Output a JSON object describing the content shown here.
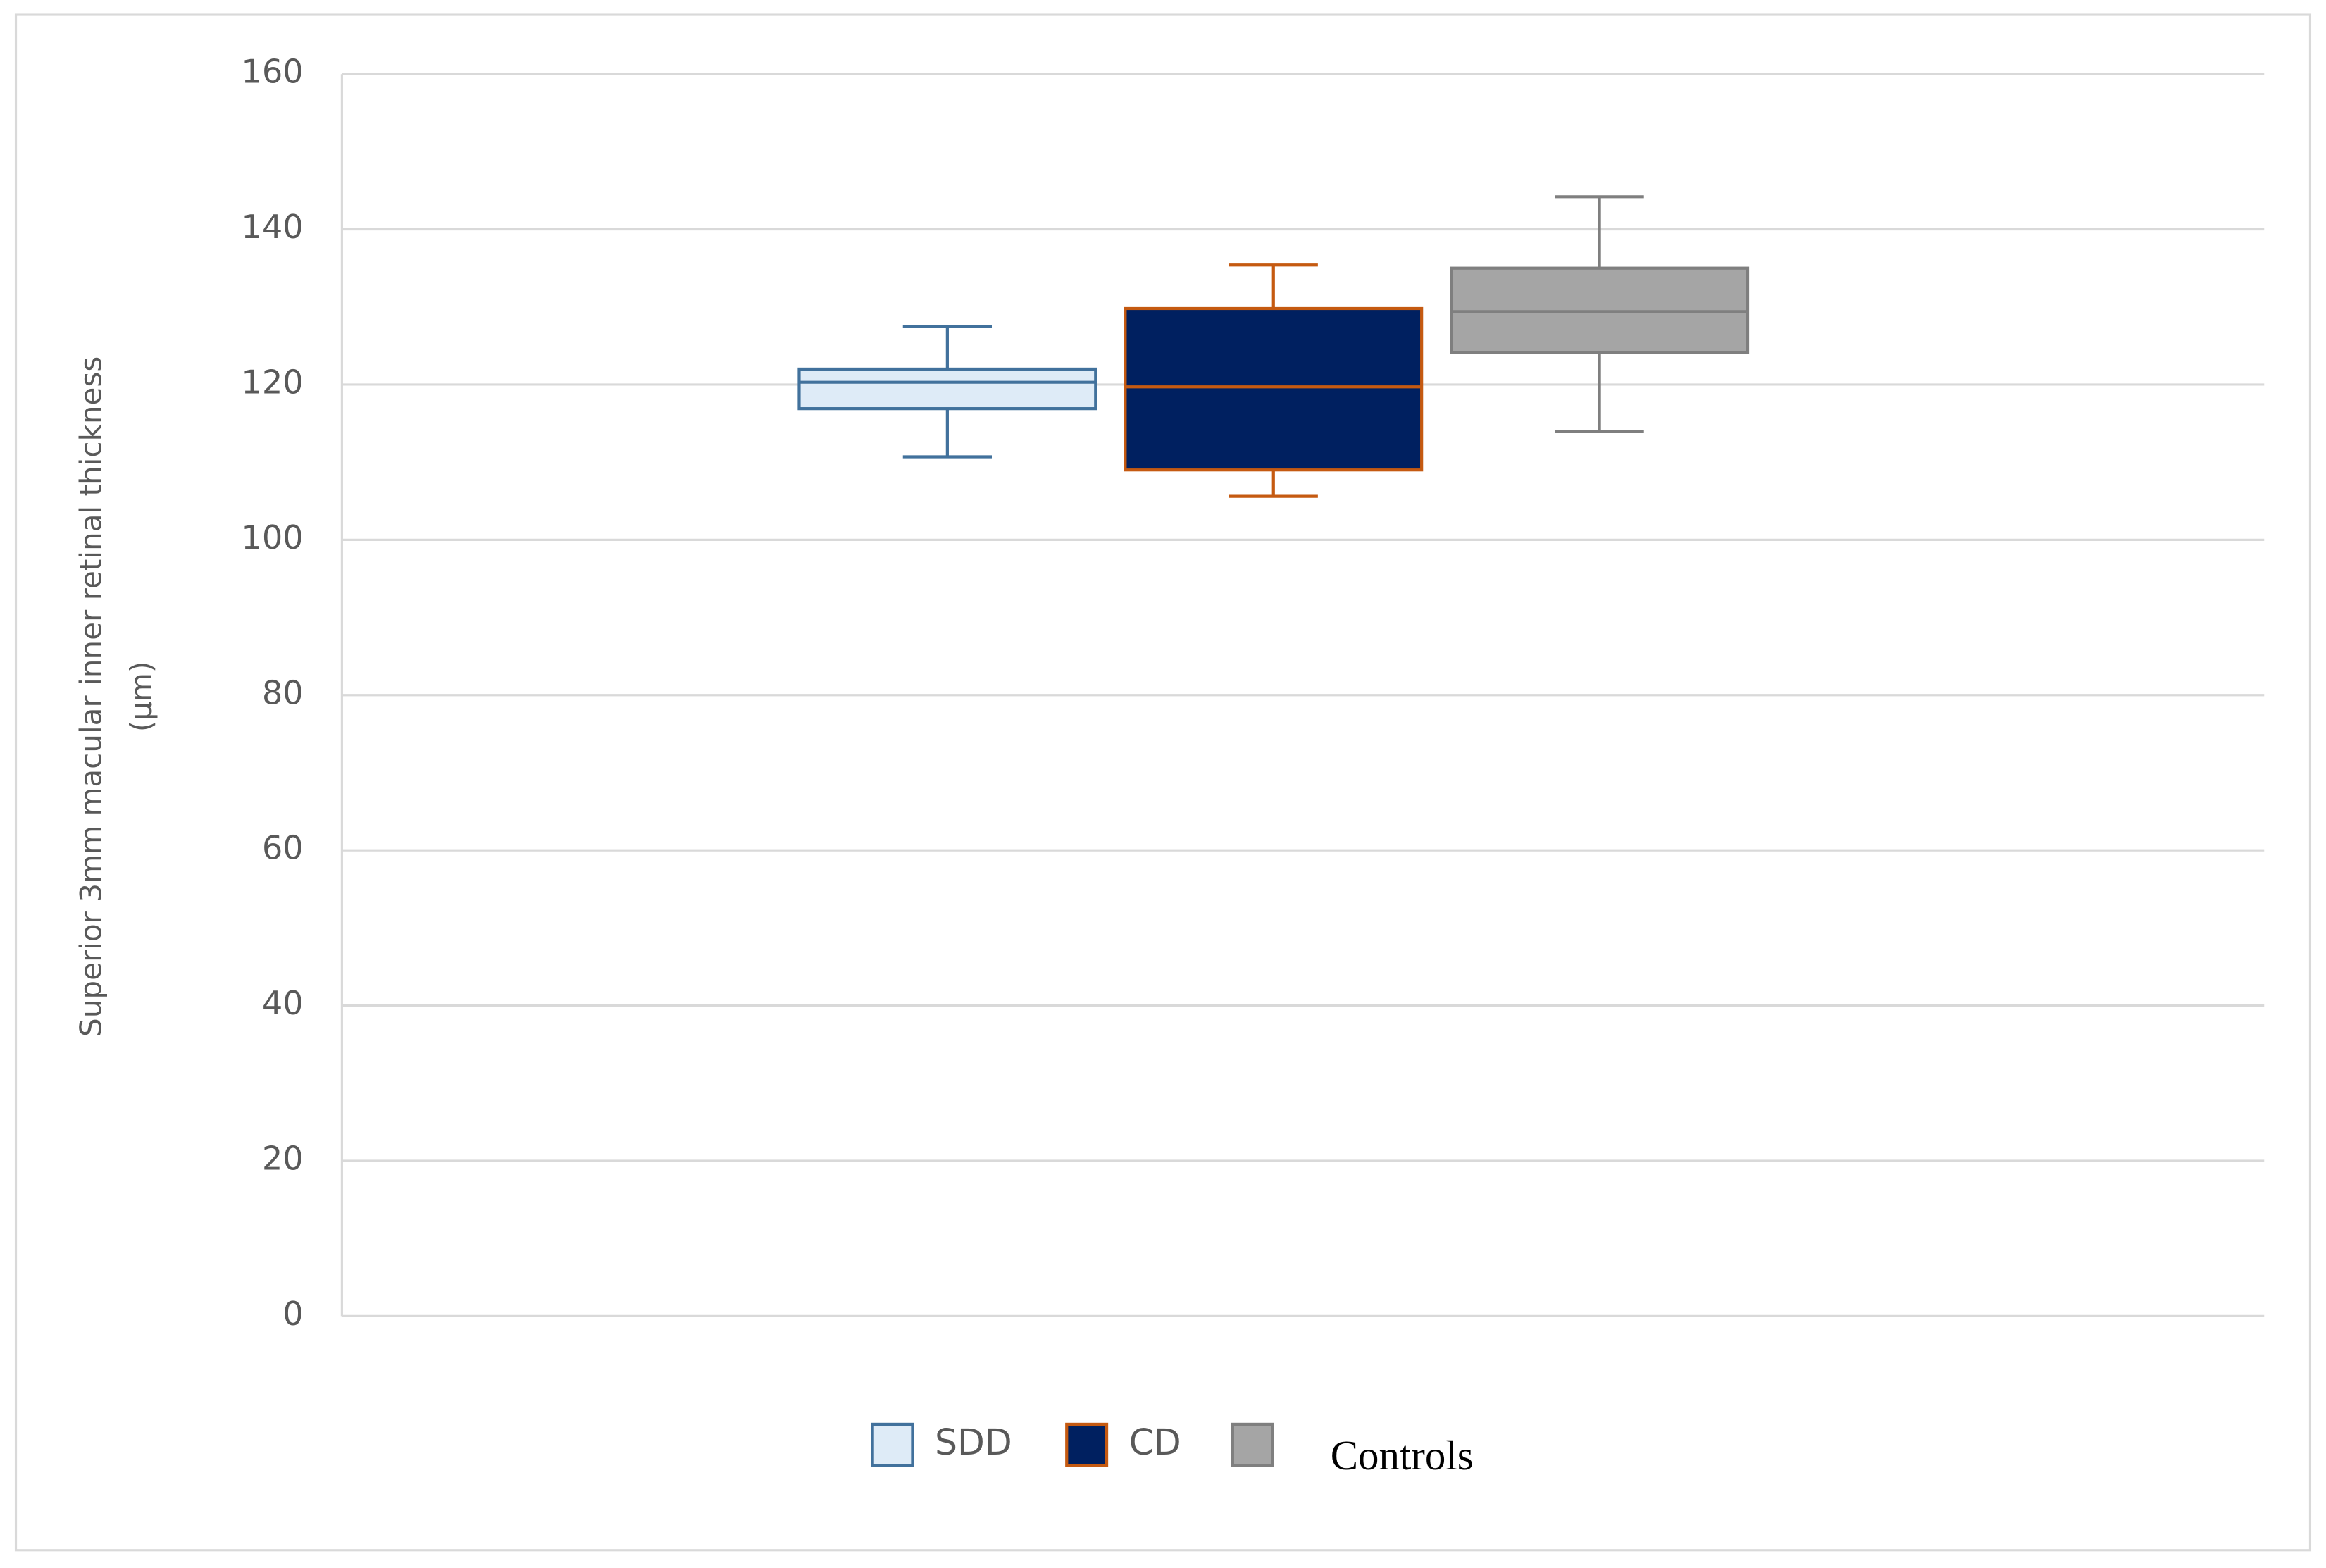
{
  "chart_data": {
    "type": "box",
    "y_label": [
      "Superior 3mm macular inner retinal thickness",
      "(μm)"
    ],
    "categories": [
      null
    ],
    "series": [
      {
        "name": "SDD",
        "color": "#deebf7",
        "stroke": "#41719c",
        "min": [
          110.7
        ],
        "q1": [
          116.9
        ],
        "median": [
          120.3
        ],
        "q3": [
          122.0
        ],
        "max": [
          127.5
        ]
      },
      {
        "name": "CD",
        "color": "#002060",
        "stroke": "#c55a11",
        "min": [
          105.6
        ],
        "q1": [
          109.0
        ],
        "median": [
          119.7
        ],
        "q3": [
          129.8
        ],
        "max": [
          135.4
        ]
      },
      {
        "name": "Controls",
        "color": "#a5a5a5",
        "stroke": "#7f7f7f",
        "min": [
          114.0
        ],
        "q1": [
          124.1
        ],
        "median": [
          129.4
        ],
        "q3": [
          135.0
        ],
        "max": [
          144.2
        ]
      }
    ],
    "ylim": [
      0,
      160
    ],
    "yticks": [
      0,
      20,
      40,
      60,
      80,
      100,
      120,
      140,
      160
    ],
    "grid": true,
    "legend": "bottom"
  }
}
